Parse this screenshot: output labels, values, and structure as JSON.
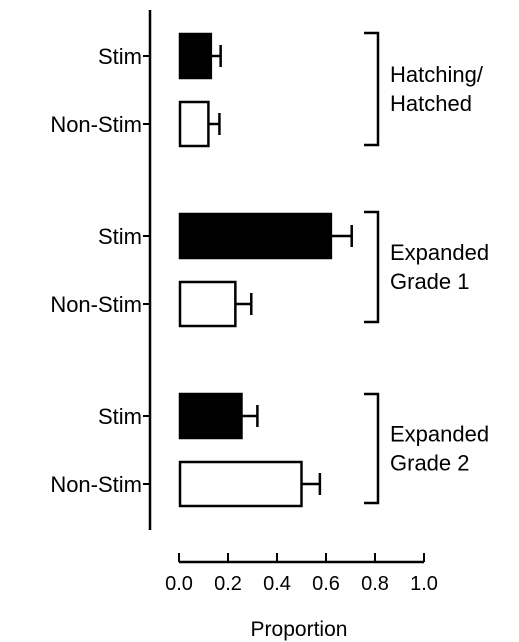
{
  "chart_data": {
    "type": "bar",
    "orientation": "horizontal",
    "xlabel": "Proportion",
    "xlim": [
      0,
      1.0
    ],
    "x_ticks": [
      "0.0",
      "0.2",
      "0.4",
      "0.6",
      "0.8",
      "1.0"
    ],
    "colors": {
      "Stim": "#000000",
      "Non-Stim": "#ffffff",
      "stroke": "#000000"
    },
    "groups": [
      {
        "label_lines": [
          "Hatching/",
          "Hatched"
        ],
        "bars": [
          {
            "category": "Stim",
            "value": 0.13,
            "error": 0.04
          },
          {
            "category": "Non-Stim",
            "value": 0.12,
            "error": 0.045
          }
        ]
      },
      {
        "label_lines": [
          "Expanded",
          "Grade 1"
        ],
        "bars": [
          {
            "category": "Stim",
            "value": 0.62,
            "error": 0.085
          },
          {
            "category": "Non-Stim",
            "value": 0.23,
            "error": 0.065
          }
        ]
      },
      {
        "label_lines": [
          "Expanded",
          "Grade 2"
        ],
        "bars": [
          {
            "category": "Stim",
            "value": 0.255,
            "error": 0.065
          },
          {
            "category": "Non-Stim",
            "value": 0.5,
            "error": 0.075
          }
        ]
      }
    ]
  }
}
